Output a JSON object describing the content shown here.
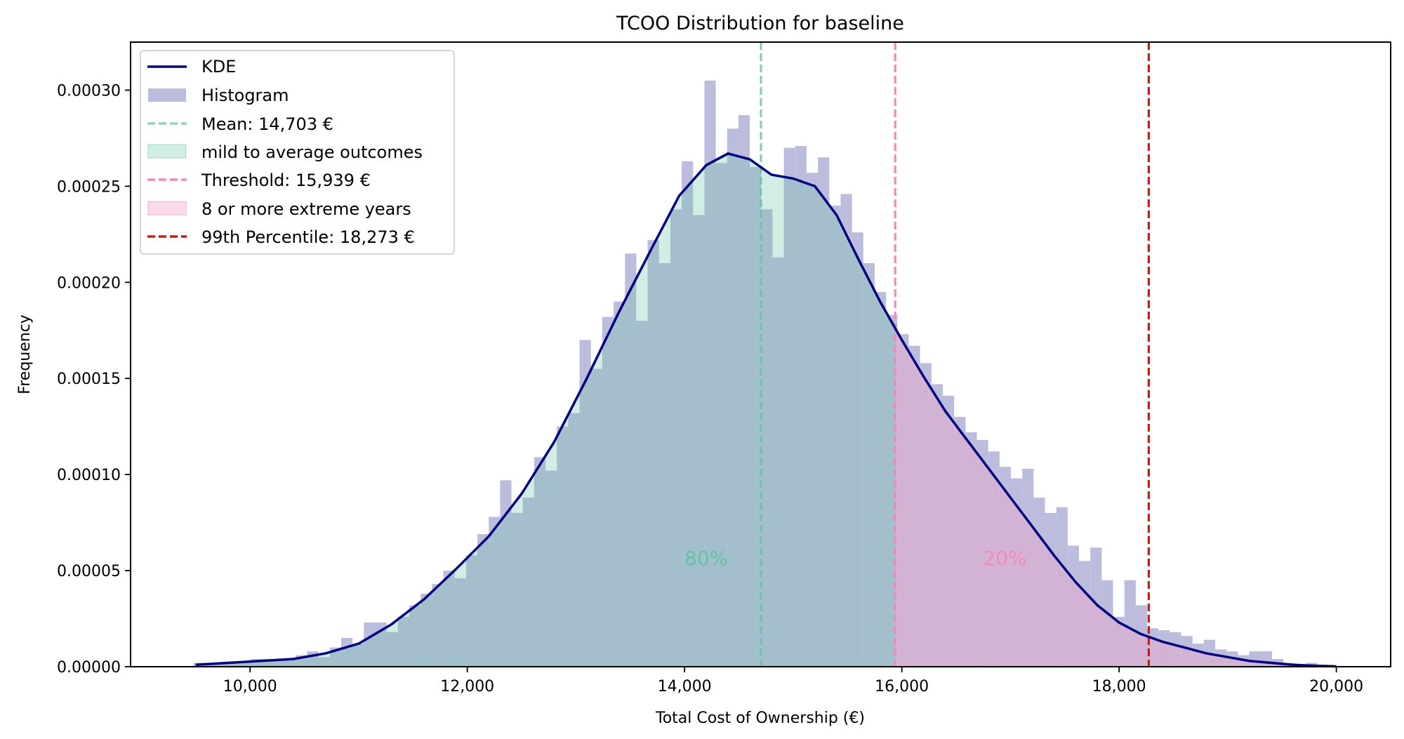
{
  "chart_data": {
    "type": "bar",
    "title": "TCOO Distribution for baseline",
    "xlabel": "Total Cost of Ownership (€)",
    "ylabel": "Frequency",
    "xlim": [
      8900,
      20500
    ],
    "ylim": [
      0,
      0.000325
    ],
    "xticks": [
      10000,
      12000,
      14000,
      16000,
      18000,
      20000
    ],
    "xtick_labels": [
      "10,000",
      "12,000",
      "14,000",
      "16,000",
      "18,000",
      "20,000"
    ],
    "yticks": [
      0,
      5e-05,
      0.0001,
      0.00015,
      0.0002,
      0.00025,
      0.0003
    ],
    "ytick_labels": [
      "0.00000",
      "0.00005",
      "0.00010",
      "0.00015",
      "0.00020",
      "0.00025",
      "0.00030"
    ],
    "grid": false,
    "legend_position": "top-left",
    "histogram": {
      "name": "Histogram",
      "bin_start": 9480,
      "bin_width": 104.5,
      "values": [
        2e-06,
        2e-06,
        2e-06,
        2e-06,
        2e-06,
        4e-06,
        4e-06,
        3e-06,
        4e-06,
        6e-06,
        8e-06,
        5e-06,
        1e-05,
        1.5e-05,
        1.2e-05,
        2.3e-05,
        2.3e-05,
        1.8e-05,
        2.6e-05,
        3.2e-05,
        3.8e-05,
        4.3e-05,
        5e-05,
        4.6e-05,
        5.8e-05,
        6.9e-05,
        7.8e-05,
        9.7e-05,
        8e-05,
        8.8e-05,
        0.000109,
        0.000102,
        0.000125,
        0.000132,
        0.00017,
        0.000155,
        0.000182,
        0.00019,
        0.000215,
        0.00018,
        0.000222,
        0.00021,
        0.000238,
        0.000263,
        0.000235,
        0.000305,
        0.000262,
        0.00028,
        0.000287,
        0.00026,
        0.000238,
        0.000213,
        0.00027,
        0.000271,
        0.000257,
        0.000265,
        0.00024,
        0.000246,
        0.000226,
        0.00021,
        0.000195,
        0.000183,
        0.000173,
        0.000167,
        0.000158,
        0.000147,
        0.000141,
        0.00013,
        0.000122,
        0.000118,
        0.000112,
        0.000104,
        9.8e-05,
        0.000103,
        8.8e-05,
        8e-05,
        8.3e-05,
        6.3e-05,
        5.5e-05,
        6.2e-05,
        4.5e-05,
        2.6e-05,
        4.5e-05,
        3.2e-05,
        2e-05,
        1.9e-05,
        1.8e-05,
        1.6e-05,
        1.2e-05,
        1.4e-05,
        9e-06,
        8e-06,
        6e-06,
        8e-06,
        8e-06,
        4e-06,
        2e-06,
        1e-06,
        2e-06,
        1e-06
      ]
    },
    "kde": {
      "name": "KDE",
      "x": [
        9500,
        9800,
        10100,
        10400,
        10700,
        11000,
        11300,
        11600,
        11900,
        12200,
        12500,
        12800,
        13100,
        13400,
        13700,
        13950,
        14200,
        14400,
        14600,
        14800,
        15000,
        15200,
        15400,
        15600,
        15800,
        16000,
        16200,
        16400,
        16600,
        16800,
        17000,
        17200,
        17400,
        17600,
        17800,
        18000,
        18200,
        18400,
        18600,
        18800,
        19000,
        19200,
        19400,
        19600,
        19800,
        20000
      ],
      "y": [
        1e-06,
        2e-06,
        3e-06,
        4e-06,
        7e-06,
        1.2e-05,
        2.2e-05,
        3.5e-05,
        5.1e-05,
        6.8e-05,
        9e-05,
        0.000117,
        0.00015,
        0.000185,
        0.000218,
        0.000245,
        0.000261,
        0.000267,
        0.000264,
        0.000256,
        0.000254,
        0.00025,
        0.000235,
        0.000212,
        0.00019,
        0.00017,
        0.000151,
        0.000133,
        0.000118,
        0.000103,
        8.8e-05,
        7.3e-05,
        5.8e-05,
        4.4e-05,
        3.2e-05,
        2.3e-05,
        1.7e-05,
        1.3e-05,
        1e-05,
        7e-06,
        5e-06,
        3e-06,
        2e-06,
        1e-06,
        5e-07,
        2e-07
      ]
    },
    "regions": [
      {
        "name": "mild to average outcomes",
        "from": 9480,
        "to": 15939,
        "label": "80%"
      },
      {
        "name": "8 or more extreme years",
        "from": 15939,
        "to": 19930,
        "label": "20%"
      }
    ],
    "vlines": [
      {
        "name": "Mean",
        "x": 14703,
        "label": "Mean: 14,703 €"
      },
      {
        "name": "Threshold",
        "x": 15939,
        "label": "Threshold: 15,939 €"
      },
      {
        "name": "99th Percentile",
        "x": 18273,
        "label": "99th Percentile: 18,273 €"
      }
    ],
    "annotations": [
      {
        "text": "80%",
        "x": 14200,
        "y": 5.3e-05
      },
      {
        "text": "20%",
        "x": 16950,
        "y": 5.3e-05
      }
    ],
    "legend": [
      "KDE",
      "Histogram",
      "Mean: 14,703 €",
      "mild to average outcomes",
      "Threshold: 15,939 €",
      "8 or more extreme years",
      "99th Percentile: 18,273 €"
    ],
    "colors": {
      "kde": "#000080",
      "histogram": "#bcbddc",
      "mean": "#66c2a5",
      "mild_fill": "#66c2a5",
      "threshold": "#f08cb4",
      "extreme_fill": "#f4a6c8",
      "percentile": "#cc1a10"
    }
  }
}
